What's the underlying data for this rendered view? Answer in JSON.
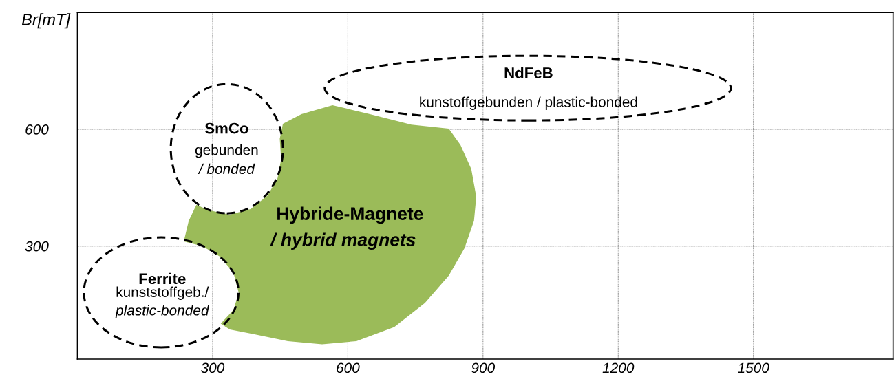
{
  "chart_data": {
    "type": "area",
    "ylabel": "Br[mT]",
    "xlim": [
      0,
      1810
    ],
    "ylim": [
      10,
      900
    ],
    "xticks": [
      300,
      600,
      900,
      1200,
      1500
    ],
    "yticks": [
      300,
      600
    ],
    "grid": true,
    "tick_labels": "xy",
    "series": [
      {
        "color": "#9bbb59",
        "x": [
          236,
          247,
          264,
          292,
          338,
          384,
          422,
          444,
          452,
          449,
          456,
          497,
          566,
          649,
          741,
          824,
          850,
          874,
          885,
          880,
          859,
          824,
          771,
          703,
          619,
          543,
          467,
          391,
          338,
          318,
          346,
          358,
          346,
          315,
          277,
          236
        ],
        "values": [
          312,
          365,
          406,
          392,
          381,
          395,
          430,
          474,
          523,
          576,
          614,
          639,
          662,
          639,
          612,
          602,
          560,
          498,
          427,
          365,
          295,
          224,
          154,
          92,
          56,
          48,
          56,
          74,
          86,
          101,
          136,
          180,
          233,
          274,
          300,
          312
        ]
      }
    ],
    "annotations": [
      "NdFeB",
      "kunstoffgebunden / plastic-bonded",
      "SmCo",
      "gebunden",
      "/ bonded",
      "Hybride-Magnete",
      "/ hybrid magnets",
      "Ferrite",
      "kunststoffgeb./",
      "plastic-bonded"
    ]
  }
}
